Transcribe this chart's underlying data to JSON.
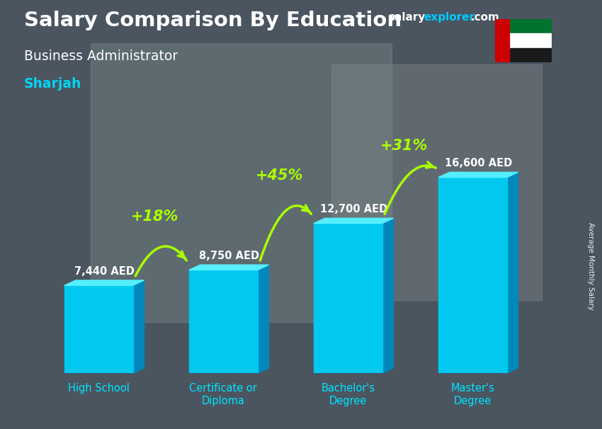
{
  "title_main": "Salary Comparison By Education",
  "title_sub": "Business Administrator",
  "title_city": "Sharjah",
  "ylabel": "Average Monthly Salary",
  "categories": [
    "High School",
    "Certificate or\nDiploma",
    "Bachelor's\nDegree",
    "Master's\nDegree"
  ],
  "values": [
    7440,
    8750,
    12700,
    16600
  ],
  "value_labels": [
    "7,440 AED",
    "8,750 AED",
    "12,700 AED",
    "16,600 AED"
  ],
  "pct_labels": [
    "+18%",
    "+45%",
    "+31%"
  ],
  "bar_face_color": "#00c8ef",
  "bar_top_color": "#55eeff",
  "bar_side_color": "#0088bb",
  "bg_color": "#5a6472",
  "title_color": "#ffffff",
  "subtitle_color": "#ffffff",
  "city_color": "#00d4f5",
  "value_label_color": "#ffffff",
  "pct_color": "#aaff00",
  "arrow_color": "#aaff00",
  "xticklabel_color": "#00e5ff",
  "ylim": [
    0,
    20000
  ],
  "bar_width": 0.55,
  "website_salary": "salary",
  "website_explorer": "explorer",
  "website_dot_com": ".com",
  "ylabel_text": "Average Monthly Salary"
}
